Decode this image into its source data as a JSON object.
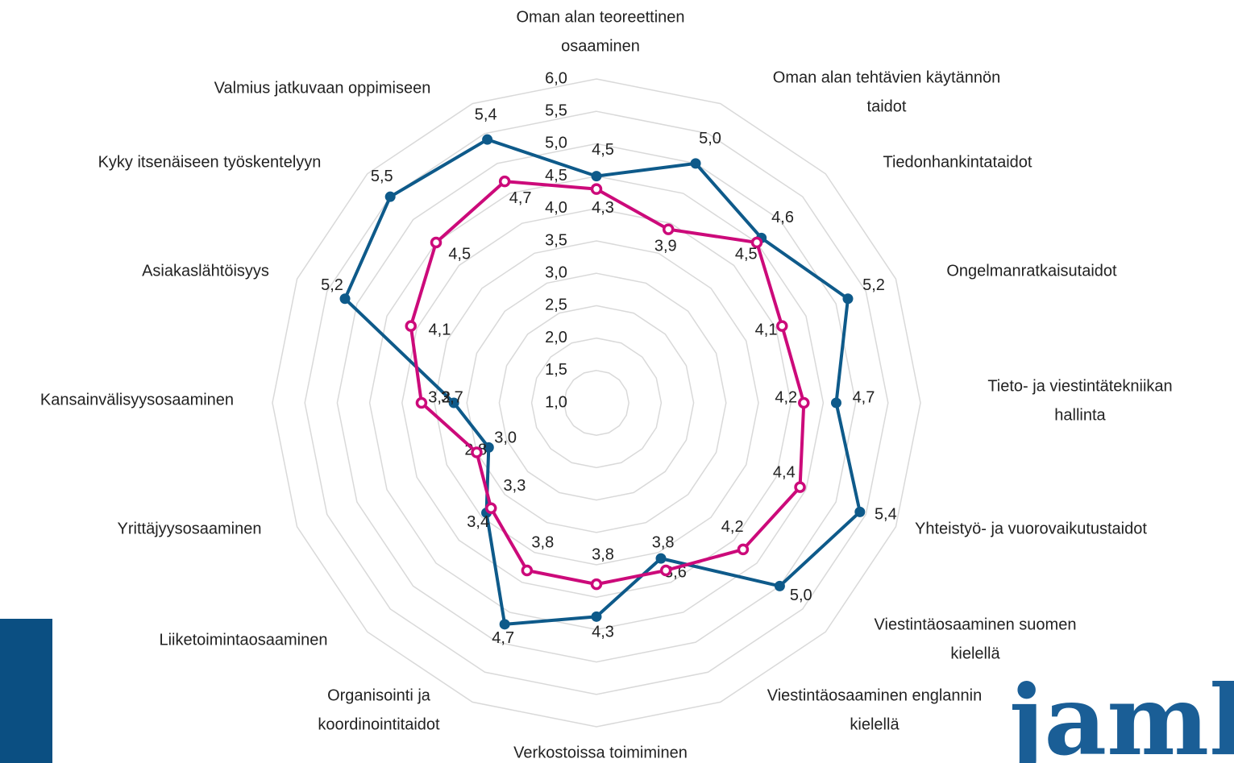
{
  "chart_data": {
    "type": "radar",
    "categories": [
      [
        "Oman alan teoreettinen",
        "osaaminen"
      ],
      [
        "Oman alan tehtävien käytännön",
        "taidot"
      ],
      [
        "Tiedonhankintataidot"
      ],
      [
        "Ongelmanratkaisutaidot"
      ],
      [
        "Tieto- ja viestintätekniikan",
        "hallinta"
      ],
      [
        "Yhteistyö- ja vuorovaikutustaidot"
      ],
      [
        "Viestintäosaaminen suomen",
        "kielellä"
      ],
      [
        "Viestintäosaaminen englannin",
        "kielellä"
      ],
      [
        "Verkostoissa toimiminen"
      ],
      [
        "Organisointi ja",
        "koordinointitaidot"
      ],
      [
        "Liiketoimintaosaaminen"
      ],
      [
        "Yrittäjyysosaaminen"
      ],
      [
        "Kansainvälisyysosaaminen"
      ],
      [
        "Asiakaslähtöisyys"
      ],
      [
        "Kyky itsenäiseen työskentelyyn"
      ],
      [
        "Valmius jatkuvaan oppimiseen"
      ]
    ],
    "series": [
      {
        "color": "#0e5a8a",
        "values": [
          4.5,
          5.0,
          4.6,
          5.2,
          4.7,
          5.4,
          5.0,
          3.6,
          4.3,
          4.7,
          3.4,
          2.8,
          3.2,
          5.2,
          5.5,
          5.4
        ],
        "value_labels": [
          "4,5",
          "5,0",
          "4,6",
          "5,2",
          "4,7",
          "5,4",
          "5,0",
          "3,6",
          "4,3",
          "4,7",
          "3,4",
          "2,8",
          "3,2",
          "5,2",
          "5,5",
          "5,4"
        ]
      },
      {
        "color": "#cc0a7a",
        "values": [
          4.3,
          3.9,
          4.5,
          4.1,
          4.2,
          4.4,
          4.2,
          3.8,
          3.8,
          3.8,
          3.3,
          3.0,
          3.7,
          4.1,
          4.5,
          4.7
        ],
        "value_labels": [
          "4,3",
          "3,9",
          "4,5",
          "4,1",
          "4,2",
          "4,4",
          "4,2",
          "3,8",
          "3,8",
          "3,8",
          "3,3",
          "3,0",
          "3,7",
          "4,1",
          "4,5",
          "4,7"
        ]
      }
    ],
    "rlim": [
      1.0,
      6.0
    ],
    "rticks": [
      {
        "value": 1.0,
        "label": "1,0"
      },
      {
        "value": 1.5,
        "label": "1,5"
      },
      {
        "value": 2.0,
        "label": "2,0"
      },
      {
        "value": 2.5,
        "label": "2,5"
      },
      {
        "value": 3.0,
        "label": "3,0"
      },
      {
        "value": 3.5,
        "label": "3,5"
      },
      {
        "value": 4.0,
        "label": "4,0"
      },
      {
        "value": 4.5,
        "label": "4,5"
      },
      {
        "value": 5.0,
        "label": "5,0"
      },
      {
        "value": 5.5,
        "label": "5,5"
      },
      {
        "value": 6.0,
        "label": "6,0"
      }
    ],
    "grid": true
  },
  "logo": "jamk"
}
